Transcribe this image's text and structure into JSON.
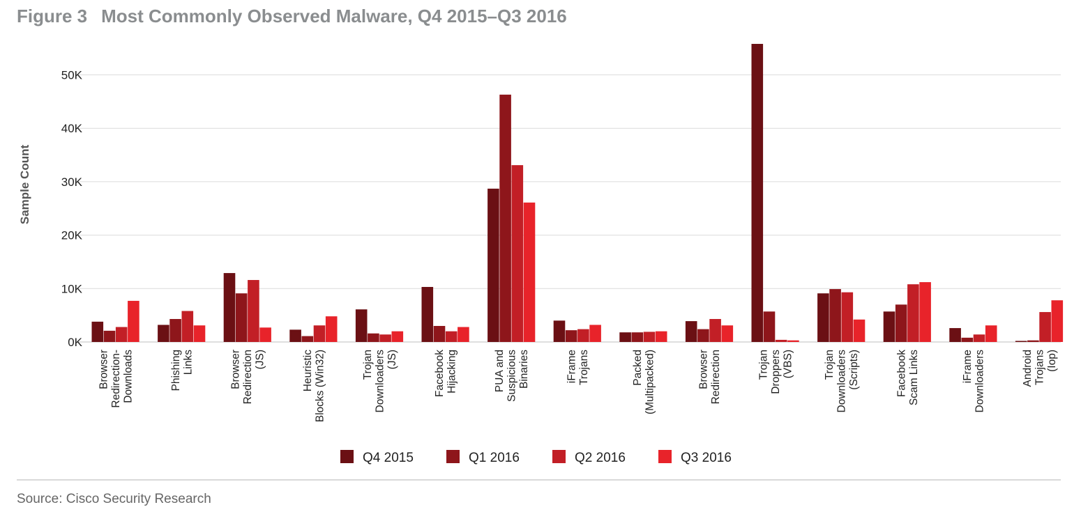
{
  "figure": {
    "number": "Figure 3",
    "title": "Most Commonly Observed Malware, Q4 2015–Q3 2016"
  },
  "source": "Source: Cisco Security Research",
  "chart_data": {
    "type": "bar",
    "ylabel": "Sample Count",
    "xlabel": "",
    "ylim": [
      0,
      55000
    ],
    "yticks": [
      0,
      10000,
      20000,
      30000,
      40000,
      50000
    ],
    "ytick_labels": [
      "0K",
      "10K",
      "20K",
      "30K",
      "40K",
      "50K"
    ],
    "grid": true,
    "legend_position": "bottom",
    "categories": [
      [
        "Browser",
        "Redirection-",
        "Downloads"
      ],
      [
        "Phishing",
        "Links"
      ],
      [
        "Browser",
        "Redirection",
        "(JS)"
      ],
      [
        "Heuristic",
        "Blocks (Win32)"
      ],
      [
        "Trojan",
        "Downloaders",
        "(JS)"
      ],
      [
        "Facebook",
        "Hijacking"
      ],
      [
        "PUA and",
        "Suspicious",
        "Binaries"
      ],
      [
        "iFrame",
        "Trojans"
      ],
      [
        "Packed",
        "(Multipacked)"
      ],
      [
        "Browser",
        "Redirection"
      ],
      [
        "Trojan",
        "Droppers",
        "(VBS)"
      ],
      [
        "Trojan",
        "Downloaders",
        "(Scripts)"
      ],
      [
        "Facebook",
        "Scam Links"
      ],
      [
        "iFrame",
        "Downloaders"
      ],
      [
        "Android",
        "Trojans",
        "(Iop)"
      ]
    ],
    "series": [
      {
        "name": "Q4 2015",
        "color": "#6b1014",
        "values": [
          3800,
          3200,
          12900,
          2300,
          6100,
          10300,
          28700,
          4000,
          1800,
          3900,
          55800,
          9100,
          5700,
          2600,
          200
        ]
      },
      {
        "name": "Q1 2016",
        "color": "#8e161b",
        "values": [
          2100,
          4300,
          9100,
          1100,
          1600,
          3000,
          46300,
          2200,
          1800,
          2400,
          5700,
          9900,
          7000,
          800,
          300
        ]
      },
      {
        "name": "Q2 2016",
        "color": "#c21f26",
        "values": [
          2800,
          5800,
          11600,
          3100,
          1400,
          2000,
          33100,
          2400,
          1900,
          4300,
          400,
          9300,
          10800,
          1400,
          5600
        ]
      },
      {
        "name": "Q3 2016",
        "color": "#e8232a",
        "values": [
          7700,
          3100,
          2700,
          4800,
          2000,
          2800,
          26100,
          3200,
          2000,
          3100,
          300,
          4200,
          11200,
          3100,
          7800
        ]
      }
    ]
  }
}
